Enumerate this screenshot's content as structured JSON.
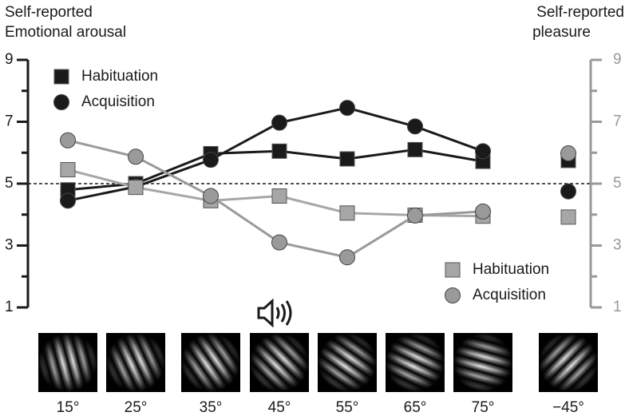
{
  "chart_data": {
    "type": "line",
    "ylabel": [
      "Self-reported",
      "Emotional arousal"
    ],
    "y2label": [
      "Self-reported",
      "pleasure"
    ],
    "categories": [
      "15°",
      "25°",
      "35°",
      "45°",
      "55°",
      "65°",
      "75°",
      null,
      "−45°"
    ],
    "ylim": [
      1,
      9
    ],
    "yticks": [
      1,
      3,
      5,
      7,
      9
    ],
    "minor_yticks": [
      2,
      4,
      6,
      8
    ],
    "y2lim": [
      1,
      9
    ],
    "y2ticks": [
      1,
      3,
      5,
      7,
      9
    ],
    "minor_y2ticks": [
      2,
      4,
      6,
      8
    ],
    "reference_line": 5,
    "series": [
      {
        "name": "Habituation",
        "color": "#1a1a1a",
        "marker": "square",
        "values": [
          4.8,
          5.0,
          5.97,
          6.05,
          5.8,
          6.1,
          5.72,
          null,
          5.75
        ]
      },
      {
        "name": "Acquisition",
        "color": "#1a1a1a",
        "marker": "circle",
        "values": [
          4.45,
          4.9,
          5.77,
          6.97,
          7.45,
          6.85,
          6.05,
          null,
          4.75
        ]
      },
      {
        "name": "Habituation",
        "color": "#a6a6a6",
        "marker": "square",
        "axis": "y2",
        "values": [
          5.45,
          4.88,
          4.45,
          4.6,
          4.05,
          3.98,
          3.95,
          null,
          3.92
        ]
      },
      {
        "name": "Acquisition",
        "color": "#9a9a9a",
        "marker": "circle",
        "axis": "y2",
        "values": [
          6.4,
          5.87,
          4.6,
          3.1,
          2.62,
          3.97,
          4.1,
          null,
          5.98
        ]
      }
    ]
  }
}
